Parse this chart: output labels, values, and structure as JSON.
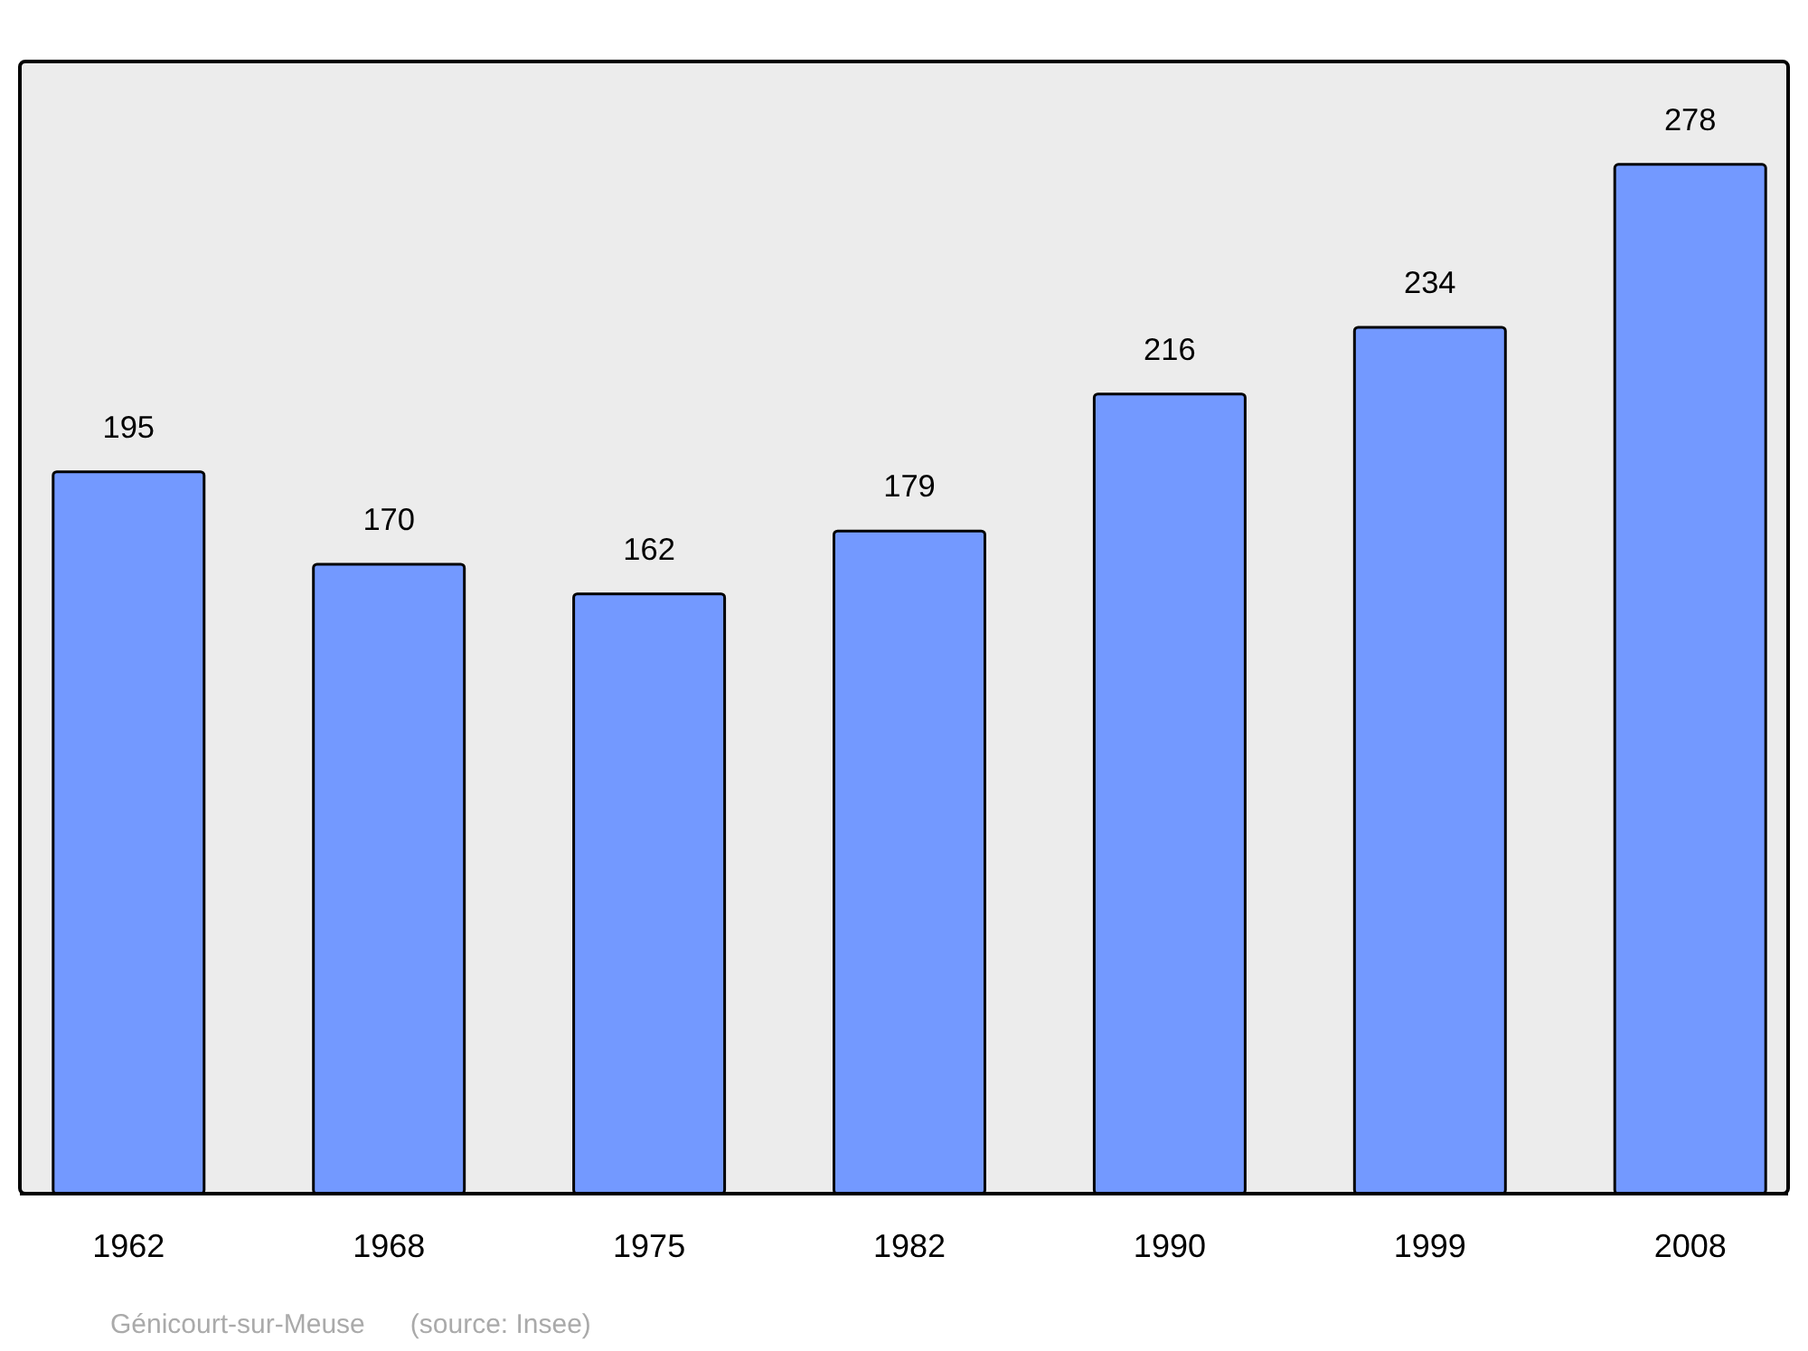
{
  "chart_data": {
    "type": "bar",
    "categories": [
      "1962",
      "1968",
      "1975",
      "1982",
      "1990",
      "1999",
      "2008"
    ],
    "values": [
      195,
      170,
      162,
      179,
      216,
      234,
      278
    ],
    "color": "#7399ff",
    "data_labels": true,
    "annotations": [
      "Génicourt-sur-Meuse",
      "(source: Insee)"
    ]
  }
}
